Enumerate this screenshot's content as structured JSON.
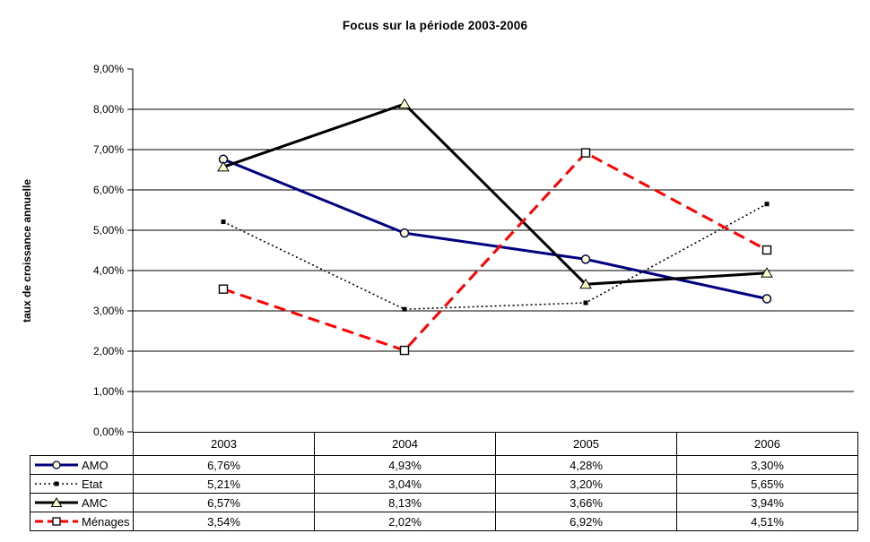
{
  "title": "Focus sur la période 2003-2006",
  "y_axis_title": "taux de croissance annuelle",
  "colors": {
    "amo": "#000080",
    "etat": "#000000",
    "amc": "#000000",
    "menages": "#FF0000",
    "marker_fill": "#FFFFCC",
    "marker_outline": "#00004D",
    "grid": "#000000",
    "background": "#FFFFFF"
  },
  "chart_data": {
    "type": "line",
    "title": "Focus sur la période 2003-2006",
    "xlabel": "",
    "ylabel": "taux de croissance annuelle",
    "categories": [
      "2003",
      "2004",
      "2005",
      "2006"
    ],
    "series": [
      {
        "name": "AMO",
        "values": [
          6.76,
          4.93,
          4.28,
          3.3
        ],
        "labels": [
          "6,76%",
          "4,93%",
          "4,28%",
          "3,30%"
        ],
        "color": "#000080",
        "line_style": "solid",
        "marker": "circle"
      },
      {
        "name": "Etat",
        "values": [
          5.21,
          3.04,
          3.2,
          5.65
        ],
        "labels": [
          "5,21%",
          "3,04%",
          "3,20%",
          "5,65%"
        ],
        "color": "#000000",
        "line_style": "dotted",
        "marker": "square-filled"
      },
      {
        "name": "AMC",
        "values": [
          6.57,
          8.13,
          3.66,
          3.94
        ],
        "labels": [
          "6,57%",
          "8,13%",
          "3,66%",
          "3,94%"
        ],
        "color": "#000000",
        "line_style": "solid",
        "marker": "triangle"
      },
      {
        "name": "Ménages",
        "values": [
          3.54,
          2.02,
          6.92,
          4.51
        ],
        "labels": [
          "3,54%",
          "2,02%",
          "6,92%",
          "4,51%"
        ],
        "color": "#FF0000",
        "line_style": "dashed",
        "marker": "square-open"
      }
    ],
    "ylim": [
      0,
      9
    ],
    "y_tick_step": 1,
    "y_tick_labels": [
      "0,00%",
      "1,00%",
      "2,00%",
      "3,00%",
      "4,00%",
      "5,00%",
      "6,00%",
      "7,00%",
      "8,00%",
      "9,00%"
    ],
    "grid": true,
    "legend_position": "table-left-column"
  }
}
